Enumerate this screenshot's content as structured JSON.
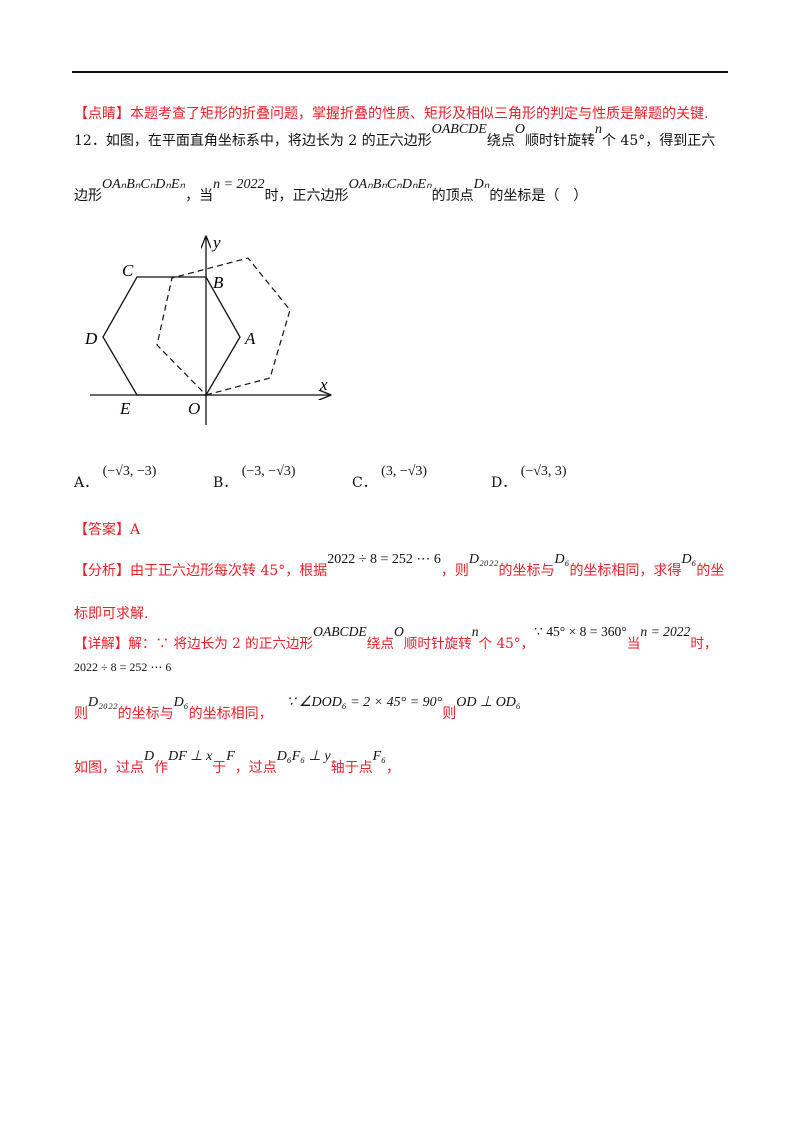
{
  "tip": {
    "tag": "【点睛】",
    "text": "本题考查了矩形的折叠问题，掌握折叠的性质、矩形及相似三角形的判定与性质是解题的关键."
  },
  "question": {
    "line1": [
      "12．如图，在平面直角坐标系中，将边长为 2 的正六边形",
      "OABCDE",
      "绕点",
      "O",
      "顺时针旋转",
      "n",
      "个 45°，得到正六"
    ],
    "line2": [
      "边形",
      "OAₙBₙCₙDₙEₙ",
      "，当",
      "n = 2022",
      "时，正六边形",
      "OAₙBₙCₙDₙEₙ",
      "的顶点",
      "Dₙ",
      "的坐标是（　）"
    ]
  },
  "figure": {
    "labels": {
      "y": "y",
      "x": "x",
      "C": "C",
      "B": "B",
      "A": "A",
      "D": "D",
      "E": "E",
      "O": "O"
    }
  },
  "options": [
    {
      "label": "A．",
      "value": "(−√3, −3)"
    },
    {
      "label": "B．",
      "value": "(−3, −√3)"
    },
    {
      "label": "C．",
      "value": "(3, −√3)"
    },
    {
      "label": "D．",
      "value": "(−√3, 3)"
    }
  ],
  "answer": {
    "tag": "【答案】",
    "value": "A"
  },
  "analysis": {
    "line1": [
      "【分析】由于正六边形每次转 45°，根据",
      "2022 ÷ 8 = 252 ⋯ 6",
      "，则",
      "D₂₀₂₂",
      "的坐标与",
      "D₆",
      "的坐标相同，求得",
      "D₆",
      "的坐"
    ],
    "line2": "标即可求解."
  },
  "detail": {
    "line1": [
      "【详解】解：∵ 将边长为 2 的正六边形",
      "OABCDE",
      "绕点",
      "O",
      "顺时针旋转",
      "n",
      "个 45°，",
      "∵ 45° × 8 = 360°",
      "当",
      "n = 2022",
      "时，"
    ],
    "line2": "2022 ÷ 8 = 252 ⋯ 6",
    "line3": [
      "则",
      "D₂₀₂₂",
      "的坐标与",
      "D₆",
      "的坐标相同，",
      "∵ ∠DOD₆ = 2 × 45° = 90°",
      "则",
      "OD ⊥ OD₆"
    ],
    "line4": [
      "如图，过点",
      "D",
      "作",
      "DF ⊥ x",
      "于",
      "F",
      "，过点",
      "D₆F₆ ⊥ y",
      "轴于点",
      "F₆",
      "，"
    ]
  },
  "colors": {
    "accent_red": "#e8202a",
    "text": "#111111"
  }
}
